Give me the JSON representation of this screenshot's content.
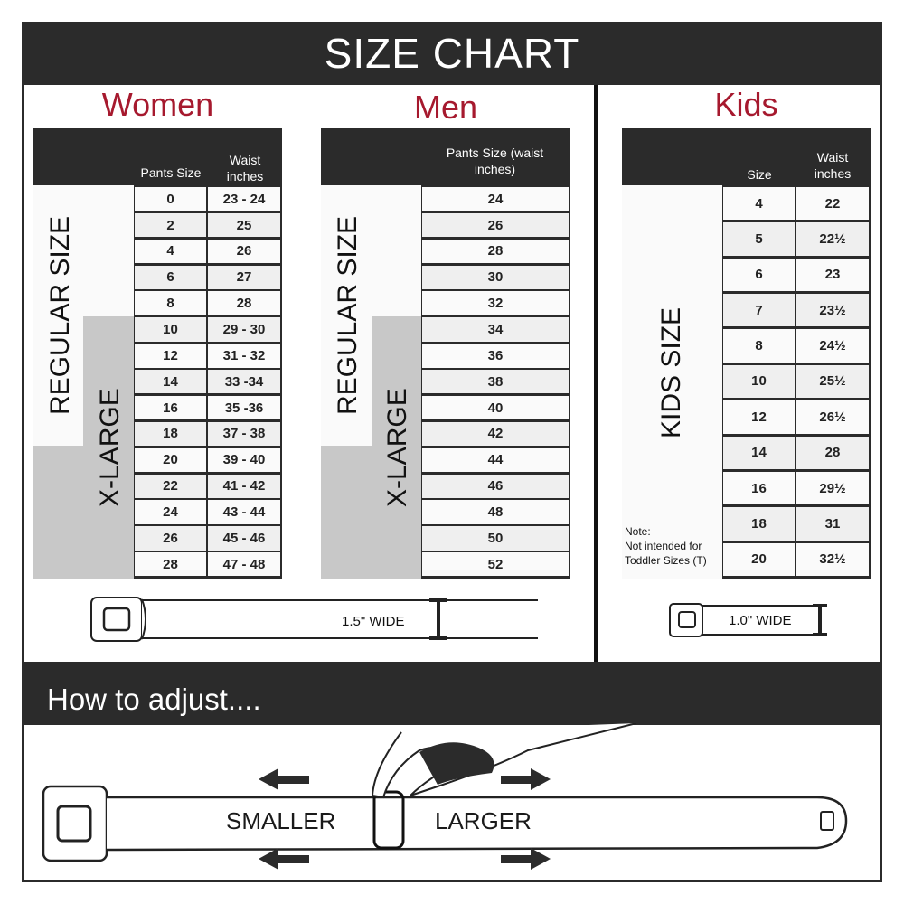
{
  "title": "SIZE CHART",
  "accent_color": "#a6192e",
  "women": {
    "title": "Women",
    "col1": "Pants Size",
    "col2": "Waist inches",
    "regular_label": "REGULAR SIZE",
    "xlarge_label": "X-LARGE",
    "rows": [
      [
        "0",
        "23 - 24"
      ],
      [
        "2",
        "25"
      ],
      [
        "4",
        "26"
      ],
      [
        "6",
        "27"
      ],
      [
        "8",
        "28"
      ],
      [
        "10",
        "29 - 30"
      ],
      [
        "12",
        "31 - 32"
      ],
      [
        "14",
        "33 -34"
      ],
      [
        "16",
        "35 -36"
      ],
      [
        "18",
        "37 - 38"
      ],
      [
        "20",
        "39 - 40"
      ],
      [
        "22",
        "41 - 42"
      ],
      [
        "24",
        "43 - 44"
      ],
      [
        "26",
        "45 - 46"
      ],
      [
        "28",
        "47 - 48"
      ]
    ]
  },
  "men": {
    "title": "Men",
    "col1": "Pants Size (waist inches)",
    "regular_label": "REGULAR SIZE",
    "xlarge_label": "X-LARGE",
    "rows": [
      "24",
      "26",
      "28",
      "30",
      "32",
      "34",
      "36",
      "38",
      "40",
      "42",
      "44",
      "46",
      "48",
      "50",
      "52"
    ]
  },
  "kids": {
    "title": "Kids",
    "col1": "Size",
    "col2": "Waist inches",
    "size_label": "KIDS SIZE",
    "note_title": "Note:",
    "note_text": "Not intended for Toddler Sizes (T)",
    "rows": [
      [
        "4",
        "22"
      ],
      [
        "5",
        "22½"
      ],
      [
        "6",
        "23"
      ],
      [
        "7",
        "23½"
      ],
      [
        "8",
        "24½"
      ],
      [
        "10",
        "25½"
      ],
      [
        "12",
        "26½"
      ],
      [
        "14",
        "28"
      ],
      [
        "16",
        "29½"
      ],
      [
        "18",
        "31"
      ],
      [
        "20",
        "32½"
      ]
    ]
  },
  "adult_belt_width": "1.5\" WIDE",
  "kids_belt_width": "1.0\" WIDE",
  "adjust": {
    "title": "How to adjust....",
    "smaller": "SMALLER",
    "larger": "LARGER"
  }
}
